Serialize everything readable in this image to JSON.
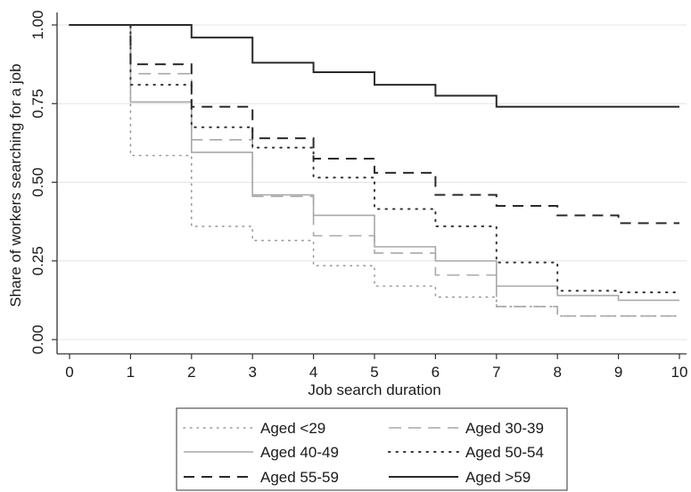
{
  "chart_data": {
    "type": "line",
    "step": true,
    "xlabel": "Job search duration",
    "ylabel": "Share of workers searching for a job",
    "xlim": [
      0,
      10
    ],
    "ylim": [
      0,
      1
    ],
    "x_ticks": [
      "0",
      "1",
      "2",
      "3",
      "4",
      "5",
      "6",
      "7",
      "8",
      "9",
      "10"
    ],
    "y_ticks": [
      "0.00",
      "0.25",
      "0.50",
      "0.75",
      "1.00"
    ],
    "grid": "horizontal",
    "legend_position": "bottom",
    "x": [
      0,
      1,
      2,
      3,
      4,
      5,
      6,
      7,
      8,
      9,
      10
    ],
    "series": [
      {
        "name": "Aged <29",
        "style": "dotted-light",
        "color": "#9a9a9a",
        "values": [
          1.0,
          0.585,
          0.36,
          0.315,
          0.235,
          0.17,
          0.135,
          0.105,
          0.075,
          0.075,
          0.075
        ]
      },
      {
        "name": "Aged 30-39",
        "style": "dashed-light",
        "color": "#a8a8a8",
        "values": [
          1.0,
          0.845,
          0.635,
          0.455,
          0.33,
          0.275,
          0.205,
          0.105,
          0.075,
          0.075,
          0.075
        ]
      },
      {
        "name": "Aged 40-49",
        "style": "solid-light",
        "color": "#a8a8a8",
        "values": [
          1.0,
          0.755,
          0.595,
          0.46,
          0.395,
          0.295,
          0.25,
          0.17,
          0.14,
          0.125,
          0.125
        ]
      },
      {
        "name": "Aged 50-54",
        "style": "dotted-dark",
        "color": "#333333",
        "values": [
          1.0,
          0.81,
          0.675,
          0.61,
          0.515,
          0.415,
          0.36,
          0.245,
          0.155,
          0.15,
          0.15
        ]
      },
      {
        "name": "Aged 55-59",
        "style": "dashed-dark",
        "color": "#2a2a2a",
        "values": [
          1.0,
          0.875,
          0.74,
          0.64,
          0.575,
          0.53,
          0.46,
          0.425,
          0.395,
          0.37,
          0.37
        ]
      },
      {
        "name": "Aged >59",
        "style": "solid-dark",
        "color": "#2a2a2a",
        "values": [
          1.0,
          1.0,
          0.96,
          0.88,
          0.85,
          0.81,
          0.775,
          0.74,
          0.74,
          0.74,
          0.74
        ]
      }
    ]
  }
}
